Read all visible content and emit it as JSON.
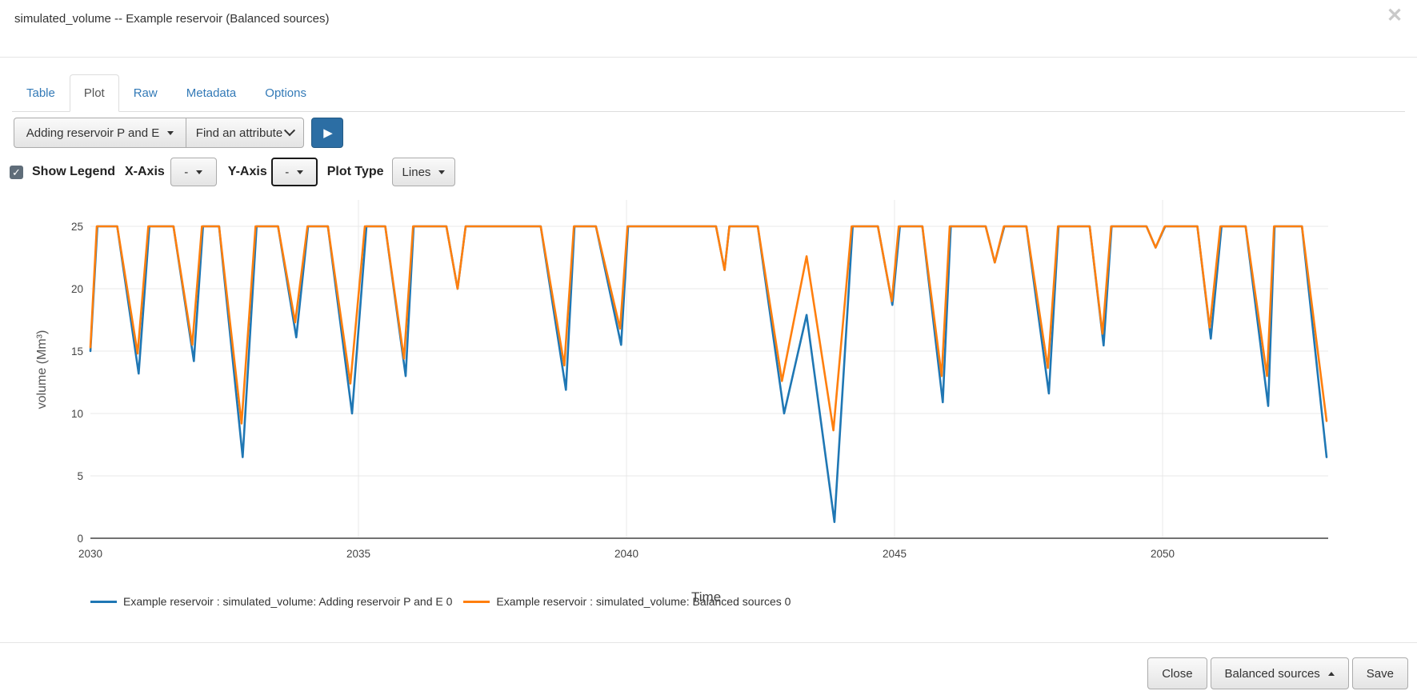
{
  "modal": {
    "title": "simulated_volume -- Example reservoir (Balanced sources)"
  },
  "icons": {
    "close": "✕",
    "play": "▶",
    "check": "✓"
  },
  "tabs": [
    {
      "label": "Table",
      "active": false
    },
    {
      "label": "Plot",
      "active": true
    },
    {
      "label": "Raw",
      "active": false
    },
    {
      "label": "Metadata",
      "active": false
    },
    {
      "label": "Options",
      "active": false
    }
  ],
  "toolbar": {
    "scenario_dropdown_label": "Adding reservoir P and E",
    "attribute_dropdown_label": "Find an attribute"
  },
  "controls": {
    "show_legend_label": "Show Legend",
    "show_legend_checked": true,
    "x_axis_label": "X-Axis",
    "x_axis_value": "-",
    "y_axis_label": "Y-Axis",
    "y_axis_value": "-",
    "plot_type_label": "Plot Type",
    "plot_type_value": "Lines"
  },
  "footer": {
    "close_label": "Close",
    "scenario_label": "Balanced sources",
    "save_label": "Save"
  },
  "accent": {
    "link_blue": "#337ab7",
    "play_button_blue": "#2c6ea4"
  },
  "chart_data": {
    "type": "line",
    "xlabel": "Time",
    "ylabel": "volume (Mm³)",
    "xlim": [
      2030,
      2053.06
    ],
    "ylim": [
      0,
      25
    ],
    "x_ticks": [
      2030,
      2035,
      2040,
      2045,
      2050
    ],
    "y_ticks": [
      0,
      5,
      10,
      15,
      20,
      25
    ],
    "grid": true,
    "legend_position": "bottom",
    "series": [
      {
        "name": "Example reservoir : simulated_volume: Adding reservoir P and E 0",
        "color": "#1f77b4",
        "points": [
          [
            2030.0,
            15.0
          ],
          [
            2030.13,
            25
          ],
          [
            2030.5,
            25
          ],
          [
            2030.9,
            13.2
          ],
          [
            2031.1,
            25
          ],
          [
            2031.55,
            25
          ],
          [
            2031.93,
            14.2
          ],
          [
            2032.1,
            25
          ],
          [
            2032.4,
            25
          ],
          [
            2032.84,
            6.5
          ],
          [
            2033.1,
            25
          ],
          [
            2033.5,
            25
          ],
          [
            2033.84,
            16.1
          ],
          [
            2034.06,
            25
          ],
          [
            2034.43,
            25
          ],
          [
            2034.88,
            10.0
          ],
          [
            2035.15,
            25
          ],
          [
            2035.5,
            25
          ],
          [
            2035.88,
            13.0
          ],
          [
            2036.03,
            25
          ],
          [
            2036.64,
            25
          ],
          [
            2036.85,
            20.0
          ],
          [
            2037.0,
            25
          ],
          [
            2038.4,
            25
          ],
          [
            2038.87,
            11.9
          ],
          [
            2039.03,
            25
          ],
          [
            2039.43,
            25
          ],
          [
            2039.9,
            15.5
          ],
          [
            2040.03,
            25
          ],
          [
            2041.67,
            25
          ],
          [
            2041.83,
            21.5
          ],
          [
            2041.92,
            25
          ],
          [
            2042.45,
            25
          ],
          [
            2042.94,
            10.0
          ],
          [
            2043.36,
            17.9
          ],
          [
            2043.88,
            1.3
          ],
          [
            2044.22,
            25
          ],
          [
            2044.69,
            25
          ],
          [
            2044.96,
            18.7
          ],
          [
            2045.1,
            25
          ],
          [
            2045.52,
            25
          ],
          [
            2045.9,
            10.9
          ],
          [
            2046.05,
            25
          ],
          [
            2046.7,
            25
          ],
          [
            2046.87,
            22.1
          ],
          [
            2047.05,
            25
          ],
          [
            2047.46,
            25
          ],
          [
            2047.88,
            11.6
          ],
          [
            2048.06,
            25
          ],
          [
            2048.64,
            25
          ],
          [
            2048.9,
            15.45
          ],
          [
            2049.05,
            25
          ],
          [
            2049.7,
            25
          ],
          [
            2049.87,
            23.3
          ],
          [
            2050.05,
            25
          ],
          [
            2050.65,
            25
          ],
          [
            2050.9,
            16.0
          ],
          [
            2051.1,
            25
          ],
          [
            2051.55,
            25
          ],
          [
            2051.97,
            10.6
          ],
          [
            2052.09,
            25
          ],
          [
            2052.6,
            25
          ],
          [
            2053.06,
            6.5
          ]
        ]
      },
      {
        "name": "Example reservoir : simulated_volume: Balanced sources 0",
        "color": "#ff7f0e",
        "points": [
          [
            2030.0,
            15.3
          ],
          [
            2030.12,
            25
          ],
          [
            2030.5,
            25
          ],
          [
            2030.88,
            14.8
          ],
          [
            2031.08,
            25
          ],
          [
            2031.55,
            25
          ],
          [
            2031.9,
            15.5
          ],
          [
            2032.08,
            25
          ],
          [
            2032.4,
            25
          ],
          [
            2032.82,
            9.2
          ],
          [
            2033.08,
            25
          ],
          [
            2033.5,
            25
          ],
          [
            2033.82,
            17.3
          ],
          [
            2034.05,
            25
          ],
          [
            2034.43,
            25
          ],
          [
            2034.85,
            12.4
          ],
          [
            2035.12,
            25
          ],
          [
            2035.5,
            25
          ],
          [
            2035.85,
            14.4
          ],
          [
            2036.02,
            25
          ],
          [
            2036.64,
            25
          ],
          [
            2036.85,
            20.0
          ],
          [
            2037.0,
            25
          ],
          [
            2038.4,
            25
          ],
          [
            2038.84,
            13.85
          ],
          [
            2039.02,
            25
          ],
          [
            2039.43,
            25
          ],
          [
            2039.88,
            16.8
          ],
          [
            2040.02,
            25
          ],
          [
            2041.67,
            25
          ],
          [
            2041.83,
            21.5
          ],
          [
            2041.92,
            25
          ],
          [
            2042.45,
            25
          ],
          [
            2042.9,
            12.6
          ],
          [
            2043.36,
            22.6
          ],
          [
            2043.86,
            8.65
          ],
          [
            2044.2,
            25
          ],
          [
            2044.69,
            25
          ],
          [
            2044.95,
            19.0
          ],
          [
            2045.08,
            25
          ],
          [
            2045.52,
            25
          ],
          [
            2045.88,
            13.0
          ],
          [
            2046.03,
            25
          ],
          [
            2046.7,
            25
          ],
          [
            2046.87,
            22.1
          ],
          [
            2047.04,
            25
          ],
          [
            2047.46,
            25
          ],
          [
            2047.86,
            13.65
          ],
          [
            2048.05,
            25
          ],
          [
            2048.64,
            25
          ],
          [
            2048.88,
            16.4
          ],
          [
            2049.04,
            25
          ],
          [
            2049.7,
            25
          ],
          [
            2049.87,
            23.3
          ],
          [
            2050.04,
            25
          ],
          [
            2050.65,
            25
          ],
          [
            2050.88,
            16.9
          ],
          [
            2051.08,
            25
          ],
          [
            2051.55,
            25
          ],
          [
            2051.95,
            13.0
          ],
          [
            2052.08,
            25
          ],
          [
            2052.6,
            25
          ],
          [
            2053.06,
            9.4
          ]
        ]
      }
    ]
  }
}
